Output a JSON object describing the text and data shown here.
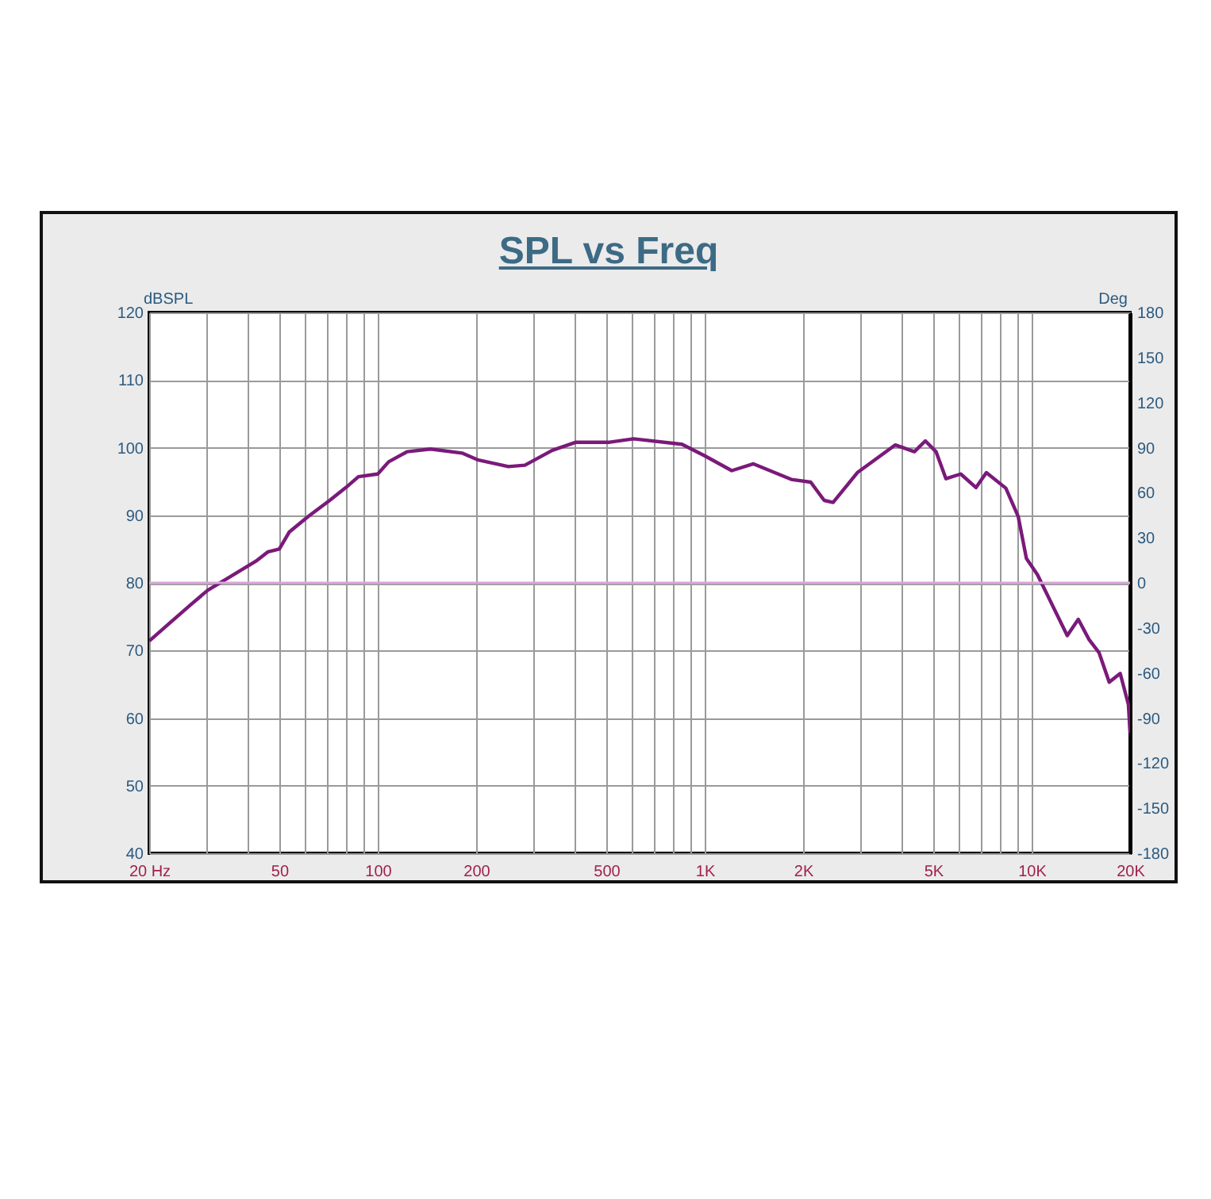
{
  "chart_data": {
    "type": "line",
    "title": "SPL vs Freq",
    "ylabel": "dBSPL",
    "y2label": "Deg",
    "x": [
      20,
      23.3,
      27,
      30.2,
      35.1,
      42.4,
      46.2,
      50,
      53.6,
      61.2,
      71.3,
      79.9,
      87.3,
      100,
      108,
      123,
      145,
      181,
      202,
      251,
      282,
      342,
      404,
      512,
      606,
      852,
      1000,
      1210,
      1410,
      1840,
      2110,
      2320,
      2470,
      2930,
      3830,
      4380,
      4730,
      5100,
      5470,
      6070,
      6760,
      7270,
      8340,
      9100,
      9640,
      10420,
      12850,
      13890,
      14990,
      16070,
      17270,
      18660,
      19770,
      20000
    ],
    "series": [
      {
        "color": "#7a1a7a",
        "values": [
          71.4,
          74.2,
          76.9,
          78.9,
          80.8,
          83.2,
          84.6,
          85,
          87.5,
          89.8,
          92.2,
          94.1,
          95.7,
          96.1,
          97.9,
          99.4,
          99.8,
          99.2,
          98.2,
          97.2,
          97.4,
          99.6,
          100.8,
          100.8,
          101.3,
          100.5,
          98.8,
          96.6,
          97.6,
          95.3,
          94.9,
          92.2,
          91.9,
          96.3,
          100.4,
          99.4,
          101,
          99.4,
          95.4,
          96.1,
          94.1,
          96.3,
          94,
          89.8,
          83.6,
          81.2,
          72.2,
          74.6,
          71.6,
          69.7,
          65.3,
          66.6,
          62,
          57.8
        ]
      }
    ],
    "log": "x",
    "xlim": [
      20,
      20000
    ],
    "xticks": [
      {
        "value": 20,
        "label": "20 Hz"
      },
      {
        "value": 30,
        "label": null
      },
      {
        "value": 40,
        "label": null
      },
      50,
      {
        "value": 60,
        "label": null
      },
      {
        "value": 70,
        "label": null
      },
      {
        "value": 80,
        "label": null
      },
      {
        "value": 90,
        "label": null
      },
      100,
      200,
      {
        "value": 300,
        "label": null
      },
      {
        "value": 400,
        "label": null
      },
      500,
      {
        "value": 600,
        "label": null
      },
      {
        "value": 700,
        "label": null
      },
      {
        "value": 800,
        "label": null
      },
      {
        "value": 900,
        "label": null
      },
      {
        "value": 1000,
        "label": "1K"
      },
      {
        "value": 2000,
        "label": "2K"
      },
      {
        "value": 3000,
        "label": null
      },
      {
        "value": 4000,
        "label": null
      },
      {
        "value": 5000,
        "label": "5K"
      },
      {
        "value": 6000,
        "label": null
      },
      {
        "value": 7000,
        "label": null
      },
      {
        "value": 8000,
        "label": null
      },
      {
        "value": 9000,
        "label": null
      },
      {
        "value": 10000,
        "label": "10K"
      },
      {
        "value": 20000,
        "label": "20K"
      }
    ],
    "ylim": [
      40,
      120
    ],
    "yticks": [
      40,
      50,
      60,
      70,
      80,
      90,
      100,
      110,
      120
    ],
    "y2lim": [
      -180,
      180
    ],
    "y2ticks": [
      -180,
      -150,
      -120,
      -90,
      -60,
      -30,
      0,
      30,
      60,
      90,
      120,
      150,
      180
    ],
    "ref_lines": [
      {
        "axis": "y2",
        "value": 0,
        "color": "#d9a6d9"
      }
    ],
    "grid": true,
    "marker": "none",
    "line_style": "solid"
  }
}
